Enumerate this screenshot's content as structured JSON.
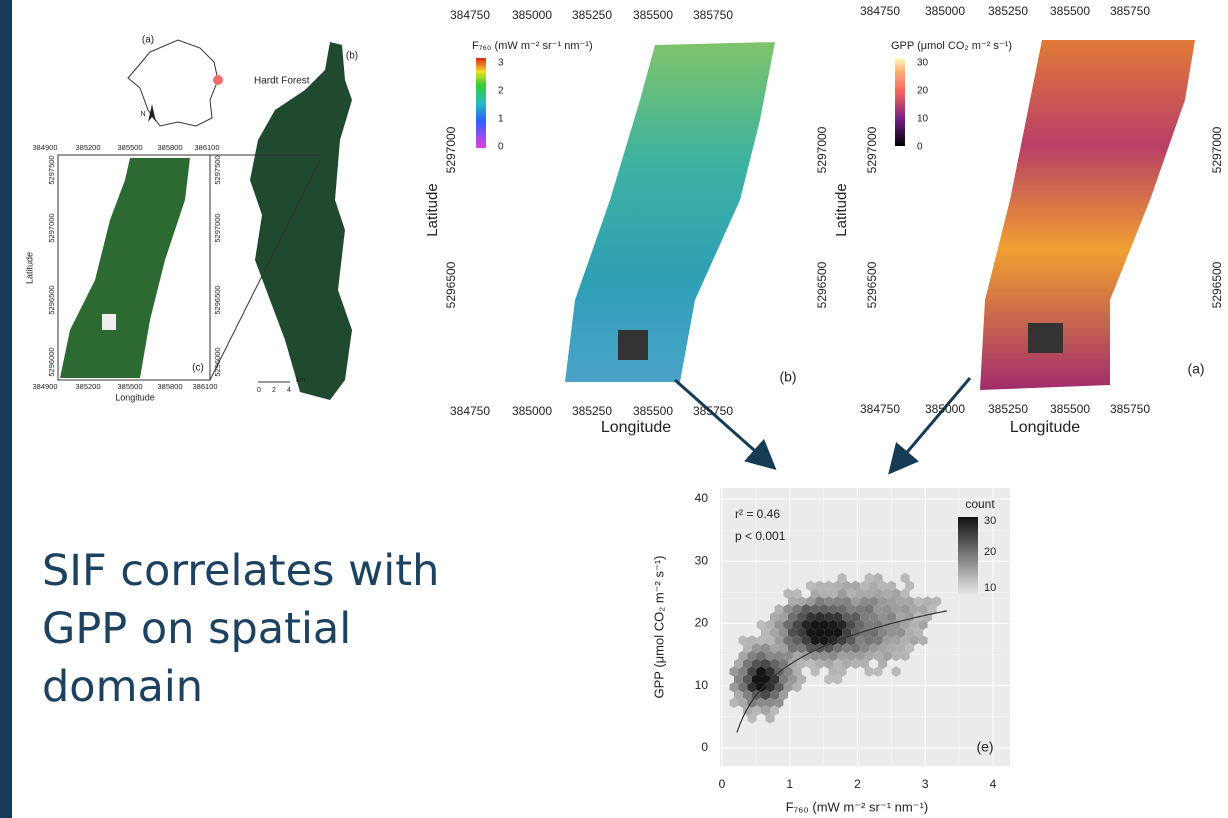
{
  "slide": {
    "text_lines": [
      "SIF  correlates with",
      "GPP on spatial",
      "domain"
    ]
  },
  "figure_site": {
    "panel_a": "(a)",
    "panel_b": "(b)",
    "panel_c": "(c)",
    "site": "Hardt Forest",
    "north": "N",
    "x_ticks": [
      "384900",
      "385200",
      "385500",
      "385800",
      "386100"
    ],
    "x_ticks_bottom": [
      "384900",
      "385200",
      "385500",
      "385800",
      "386100"
    ],
    "y_ticks": [
      "5297500",
      "5297000",
      "5296500",
      "5296000"
    ],
    "inset_y_ticks": [
      "5297500",
      "5297000",
      "5296500",
      "5296000"
    ],
    "x_label": "Longitude",
    "y_label": "Latitude",
    "scale_ticks": [
      "0",
      "2",
      "4"
    ],
    "scale_unit": "km"
  },
  "figure_sif": {
    "panel": "(b)",
    "legend_title": "F₇₆₀ (mW m⁻² sr⁻¹ nm⁻¹)",
    "legend_ticks": [
      "3",
      "2",
      "1",
      "0"
    ],
    "x_ticks": [
      "384750",
      "385000",
      "385250",
      "385500",
      "385750"
    ],
    "y_ticks": [
      "5297000",
      "5296500"
    ],
    "x_label": "Longitude",
    "y_label": "Latitude"
  },
  "figure_gpp": {
    "panel": "(a)",
    "legend_title": "GPP (μmol CO₂ m⁻² s⁻¹)",
    "legend_ticks": [
      "30",
      "20",
      "10",
      "0"
    ],
    "x_ticks": [
      "384750",
      "385000",
      "385250",
      "385500",
      "385750"
    ],
    "y_ticks": [
      "5297000",
      "5296500"
    ],
    "x_label": "Longitude",
    "y_label": "Latitude"
  },
  "figure_scatter": {
    "panel": "(e)",
    "r2": "r² = 0.46",
    "p": "p < 0.001",
    "legend_title": "count",
    "legend_ticks": [
      "30",
      "20",
      "10"
    ],
    "x_ticks": [
      "0",
      "1",
      "2",
      "3",
      "4"
    ],
    "y_ticks": [
      "0",
      "10",
      "20",
      "30",
      "40"
    ],
    "x_label": "F₇₆₀ (mW m⁻² sr⁻¹ nm⁻¹)",
    "y_label": "GPP (μmol CO₂ m⁻² s⁻¹)"
  }
}
